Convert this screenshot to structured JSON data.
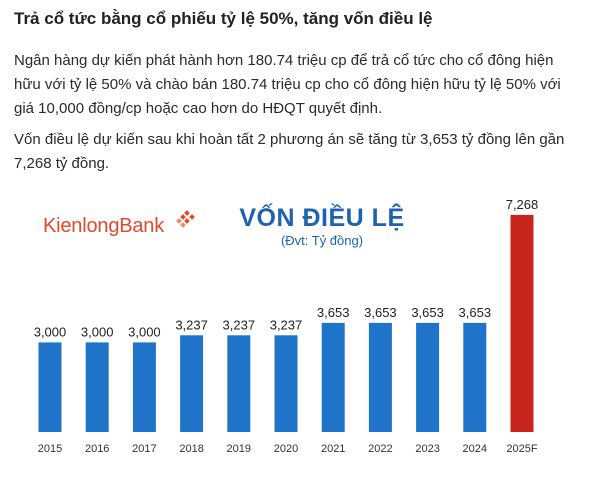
{
  "article": {
    "heading": "Trả cổ tức bằng cổ phiếu tỷ lệ 50%, tăng vốn điều lệ",
    "paragraph1": "Ngân hàng dự kiến phát hành hơn 180.74 triệu cp để trả cổ tức cho cổ đông hiện hữu với tỷ lệ 50% và chào bán 180.74 triệu cp cho cổ đông hiện hữu tỷ lệ 50% với giá 10,000 đồng/cp hoặc cao hơn do HĐQT quyết định.",
    "paragraph2": "Vốn điều lệ dự kiến sau khi hoàn tất 2 phương án sẽ tăng từ 3,653 tỷ đồng lên gần 7,268 tỷ đồng."
  },
  "brand": {
    "name": "KienlongBank",
    "logo_color": "#e0492c"
  },
  "chart_data": {
    "type": "bar",
    "title": "VỐN ĐIỀU LỆ",
    "subtitle": "(Đvt: Tỷ đồng)",
    "categories": [
      "2015",
      "2016",
      "2017",
      "2018",
      "2019",
      "2020",
      "2021",
      "2022",
      "2023",
      "2024",
      "2025F"
    ],
    "values": [
      3000,
      3000,
      3000,
      3237,
      3237,
      3237,
      3653,
      3653,
      3653,
      3653,
      7268
    ],
    "value_labels": [
      "3,000",
      "3,000",
      "3,000",
      "3,237",
      "3,237",
      "3,237",
      "3,653",
      "3,653",
      "3,653",
      "3,653",
      "7,268"
    ],
    "ylim": [
      0,
      8000
    ],
    "grid": false,
    "legend": "none",
    "colors": {
      "bar": "#1f73c9",
      "highlight_bar": "#c8251f",
      "title": "#1f62b0"
    },
    "highlight_index": 10
  }
}
